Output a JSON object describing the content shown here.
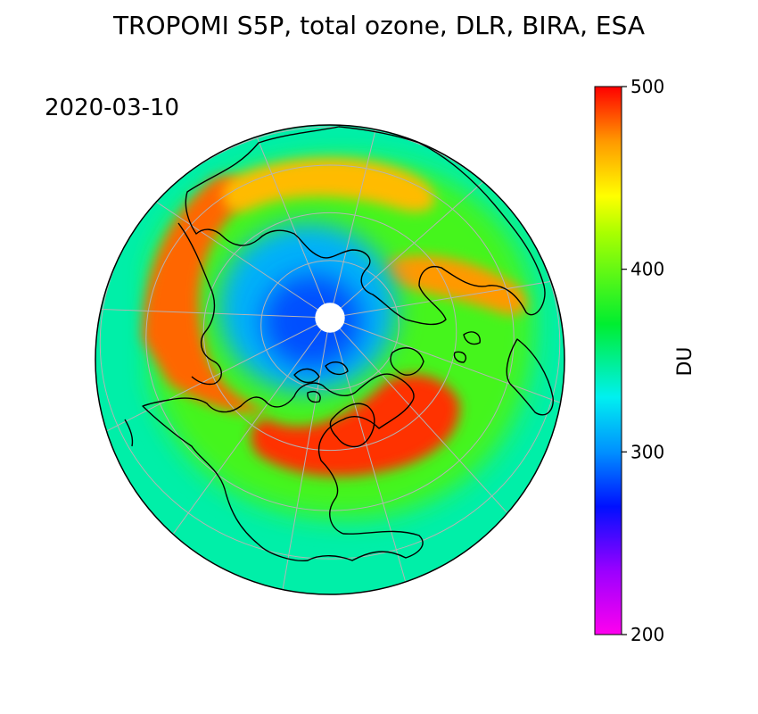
{
  "title": "TROPOMI S5P, total ozone, DLR, BIRA, ESA",
  "date": "2020-03-10",
  "colorbar": {
    "label": "DU",
    "min": 200,
    "max": 500,
    "ticks": [
      {
        "value": 500,
        "label": "500"
      },
      {
        "value": 400,
        "label": "400"
      },
      {
        "value": 300,
        "label": "300"
      },
      {
        "value": 200,
        "label": "200"
      }
    ],
    "stops": [
      {
        "value": 200,
        "color": "#ff00ee"
      },
      {
        "value": 235,
        "color": "#9a00ff"
      },
      {
        "value": 270,
        "color": "#0010ff"
      },
      {
        "value": 300,
        "color": "#0090ff"
      },
      {
        "value": 330,
        "color": "#00f0f0"
      },
      {
        "value": 370,
        "color": "#00ee30"
      },
      {
        "value": 420,
        "color": "#aaff00"
      },
      {
        "value": 440,
        "color": "#ffff00"
      },
      {
        "value": 470,
        "color": "#ff9900"
      },
      {
        "value": 500,
        "color": "#ff0000"
      }
    ]
  },
  "map": {
    "projection": "north-polar-orthographic",
    "background_du": 345,
    "ozone_features": [
      {
        "name": "vortex-core",
        "du": 285
      },
      {
        "name": "vortex-edge",
        "du": 310
      },
      {
        "name": "ring-inner",
        "du": 390
      },
      {
        "name": "high-band-west",
        "du": 480
      },
      {
        "name": "high-band-north",
        "du": 460
      },
      {
        "name": "high-band-east",
        "du": 470
      },
      {
        "name": "high-band-south",
        "du": 490
      },
      {
        "name": "mid-latitudes",
        "du": 345
      }
    ],
    "colors": {
      "coastline": "#000000",
      "graticule": "#b4b4b4",
      "outline": "#000000"
    }
  }
}
